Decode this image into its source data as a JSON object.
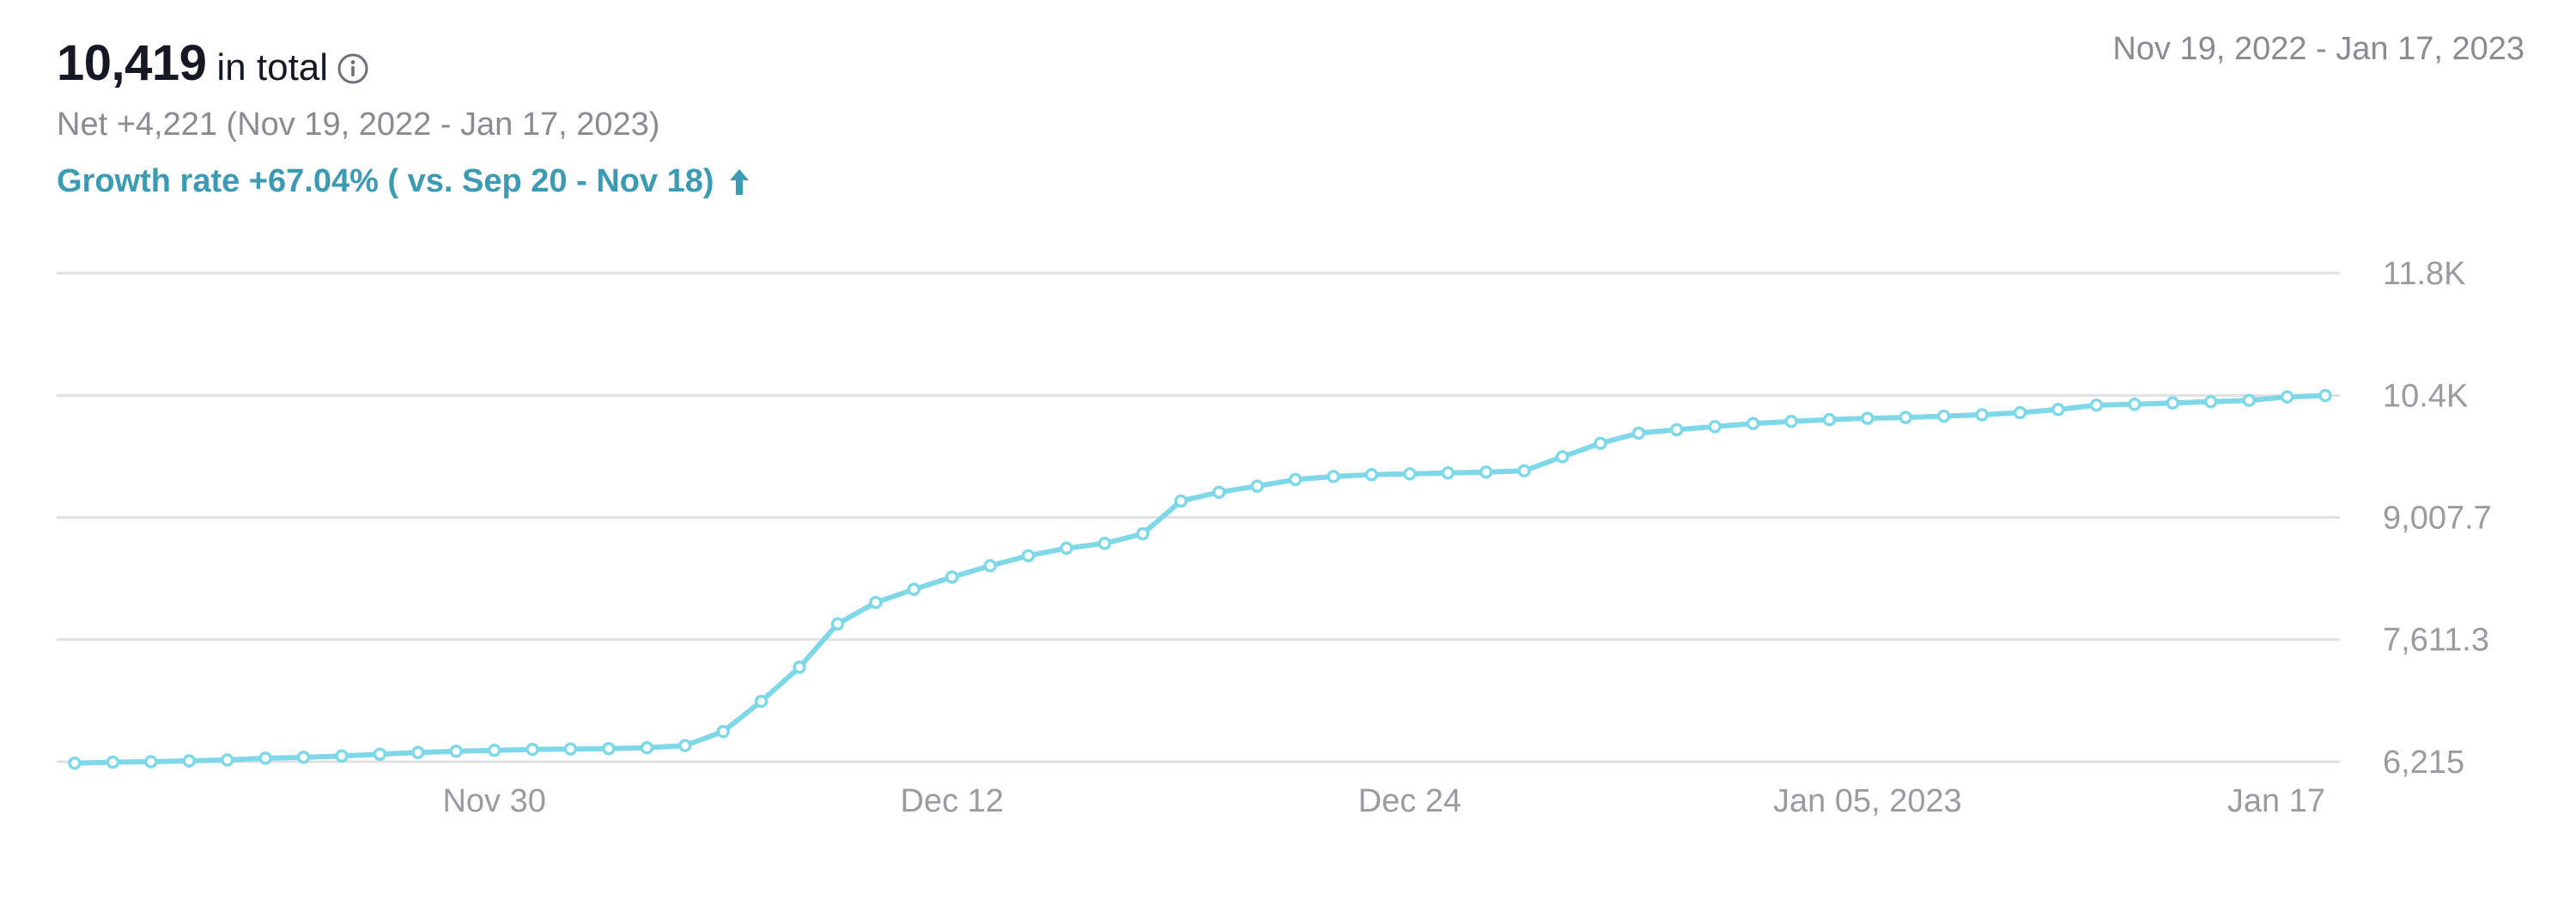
{
  "header": {
    "total_value": "10,419",
    "total_suffix": "in total",
    "net_text": "Net +4,221 (Nov 19, 2022 - Jan 17, 2023)",
    "growth_text": "Growth rate +67.04% ( vs. Sep 20 - Nov 18)",
    "date_range": "Nov 19, 2022 - Jan 17, 2023",
    "info_icon": "info-circle-icon",
    "growth_icon": "arrow-up-icon"
  },
  "colors": {
    "line": "#7fd8e8",
    "growth_text": "#3c9ab3",
    "grid": "#e1e1e3",
    "axis_text": "#9a9ba1"
  },
  "chart_data": {
    "type": "line",
    "title": "",
    "xlabel": "",
    "ylabel": "",
    "x_start": "2022-11-19",
    "x_ticks": [
      {
        "date": "2022-11-30",
        "label": "Nov 30"
      },
      {
        "date": "2022-12-12",
        "label": "Dec 12"
      },
      {
        "date": "2022-12-24",
        "label": "Dec 24"
      },
      {
        "date": "2023-01-05",
        "label": "Jan 05, 2023"
      },
      {
        "date": "2023-01-17",
        "label": "Jan 17"
      }
    ],
    "y_ticks": [
      {
        "value": 6215,
        "label": "6,215"
      },
      {
        "value": 7611.3,
        "label": "7,611.3"
      },
      {
        "value": 9007.7,
        "label": "9,007.7"
      },
      {
        "value": 10400,
        "label": "10.4K"
      },
      {
        "value": 11800,
        "label": "11.8K"
      }
    ],
    "ylim": [
      6215,
      11800
    ],
    "grid": true,
    "series": [
      {
        "values": [
          6198,
          6210,
          6215,
          6225,
          6235,
          6255,
          6265,
          6280,
          6300,
          6320,
          6335,
          6345,
          6355,
          6360,
          6365,
          6375,
          6400,
          6560,
          6905,
          7295,
          7790,
          8035,
          8185,
          8325,
          8455,
          8570,
          8655,
          8710,
          8820,
          9195,
          9295,
          9365,
          9440,
          9475,
          9495,
          9505,
          9515,
          9525,
          9540,
          9700,
          9855,
          9970,
          10010,
          10045,
          10080,
          10105,
          10125,
          10140,
          10150,
          10165,
          10180,
          10205,
          10240,
          10290,
          10300,
          10315,
          10330,
          10345,
          10385,
          10400
        ]
      }
    ]
  }
}
